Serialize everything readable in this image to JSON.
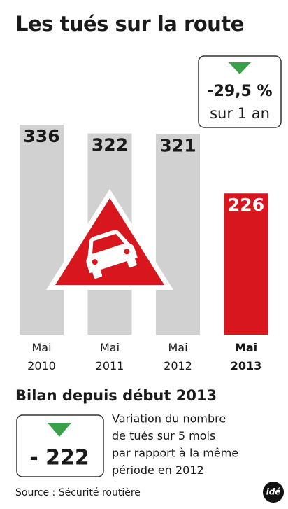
{
  "header": {
    "title": "Les tués sur la route"
  },
  "chart_data": {
    "type": "bar",
    "categories": [
      "Mai 2010",
      "Mai 2011",
      "Mai 2012",
      "Mai 2013"
    ],
    "values": [
      336,
      322,
      321,
      226
    ],
    "colors": [
      "#d1d1d1",
      "#d1d1d1",
      "#d1d1d1",
      "#d7161e"
    ],
    "highlight_index": 3
  },
  "callout": {
    "value": "-29,5 %",
    "period": "sur 1 an"
  },
  "summary": {
    "title": "Bilan depuis début 2013",
    "value": "- 222",
    "description": [
      "Variation du nombre",
      "de tués sur 5 mois",
      "par rapport à la même",
      "période en 2012"
    ]
  },
  "footer": {
    "source": "Source : Sécurité routière",
    "logo": "idé"
  }
}
